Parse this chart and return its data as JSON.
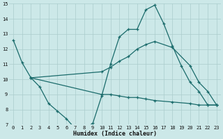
{
  "xlabel": "Humidex (Indice chaleur)",
  "xlim": [
    -0.5,
    23.5
  ],
  "ylim": [
    7,
    15
  ],
  "yticks": [
    7,
    8,
    9,
    10,
    11,
    12,
    13,
    14,
    15
  ],
  "xticks": [
    0,
    1,
    2,
    3,
    4,
    5,
    6,
    7,
    8,
    9,
    10,
    11,
    12,
    13,
    14,
    15,
    16,
    17,
    18,
    19,
    20,
    21,
    22,
    23
  ],
  "bg_color": "#cce8e8",
  "grid_color": "#aacccc",
  "line_color": "#1a6b6b",
  "line1_x": [
    0,
    1,
    2,
    3,
    4,
    5,
    6,
    7,
    8,
    9,
    10,
    11,
    12,
    13,
    14,
    15,
    16,
    17,
    18,
    19,
    20,
    21,
    22,
    23
  ],
  "line1_y": [
    12.6,
    11.1,
    10.1,
    9.5,
    8.4,
    7.9,
    7.4,
    6.75,
    6.7,
    7.1,
    8.9,
    11.0,
    12.8,
    13.3,
    13.3,
    14.6,
    14.9,
    13.7,
    12.2,
    10.9,
    9.8,
    9.2,
    8.3,
    8.3
  ],
  "line2_x": [
    2,
    10,
    11,
    12,
    13,
    14,
    15,
    16,
    18,
    20,
    21,
    22,
    23
  ],
  "line2_y": [
    10.1,
    10.5,
    10.8,
    11.2,
    11.5,
    12.0,
    12.3,
    12.5,
    12.1,
    10.9,
    9.8,
    9.2,
    8.3
  ],
  "line3_x": [
    2,
    10,
    11,
    12,
    13,
    14,
    15,
    16,
    18,
    20,
    21,
    22,
    23
  ],
  "line3_y": [
    10.1,
    9.0,
    9.0,
    8.9,
    8.8,
    8.8,
    8.7,
    8.6,
    8.5,
    8.4,
    8.3,
    8.3,
    8.3
  ]
}
